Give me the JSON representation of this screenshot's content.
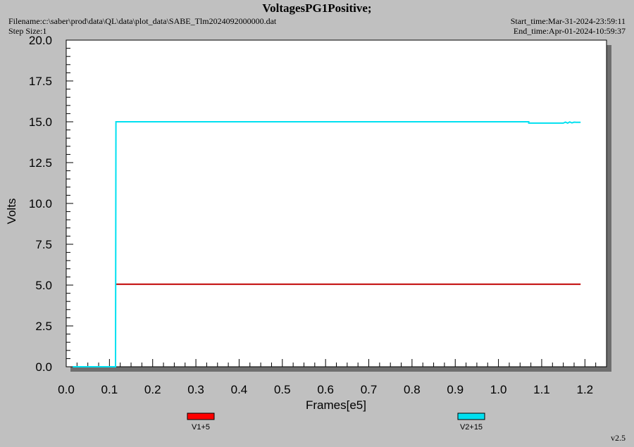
{
  "header": {
    "filename": "Filename:c:\\saber\\prod\\data\\QL\\data\\plot_data\\SABE_Tlm2024092000000.dat",
    "step_size": "Step Size:1",
    "start_time": "Start_time:Mar-31-2024-23:59:11",
    "end_time": "End_time:Apr-01-2024-10:59:37"
  },
  "version": "v2.5",
  "colors": {
    "background": "#c0c0c0",
    "plot_bg": "#ffffff",
    "shadow": "#6e6e6e",
    "v1": "#ff0000",
    "v2": "#00e0f0",
    "v1_line": "#c00000"
  },
  "chart_data": {
    "type": "line",
    "title": "VoltagesPG1Positive;",
    "xlabel": "Frames[e5]",
    "ylabel": "Volts",
    "xlim": [
      0,
      1.25
    ],
    "ylim": [
      0,
      20
    ],
    "x_ticks": [
      "0.0",
      "0.1",
      "0.2",
      "0.3",
      "0.4",
      "0.5",
      "0.6",
      "0.7",
      "0.8",
      "0.9",
      "1.0",
      "1.1",
      "1.2"
    ],
    "y_ticks": [
      "0.0",
      "2.5",
      "5.0",
      "7.5",
      "10.0",
      "12.5",
      "15.0",
      "17.5",
      "20.0"
    ],
    "legend_placement": "bottom",
    "series": [
      {
        "name": "V1+5",
        "x": [
          0.115,
          1.19
        ],
        "y": [
          5.05,
          5.05
        ]
      },
      {
        "name": "V2+15",
        "x": [
          0.015,
          0.114,
          0.114,
          0.115,
          0.115,
          1.07,
          1.07,
          1.15,
          1.155,
          1.16,
          1.165,
          1.17,
          1.175,
          1.18,
          1.19
        ],
        "y": [
          0.0,
          0.0,
          0.0,
          15.0,
          15.0,
          15.0,
          14.92,
          14.92,
          14.98,
          14.92,
          14.99,
          14.93,
          14.98,
          14.97,
          14.97
        ]
      }
    ]
  }
}
